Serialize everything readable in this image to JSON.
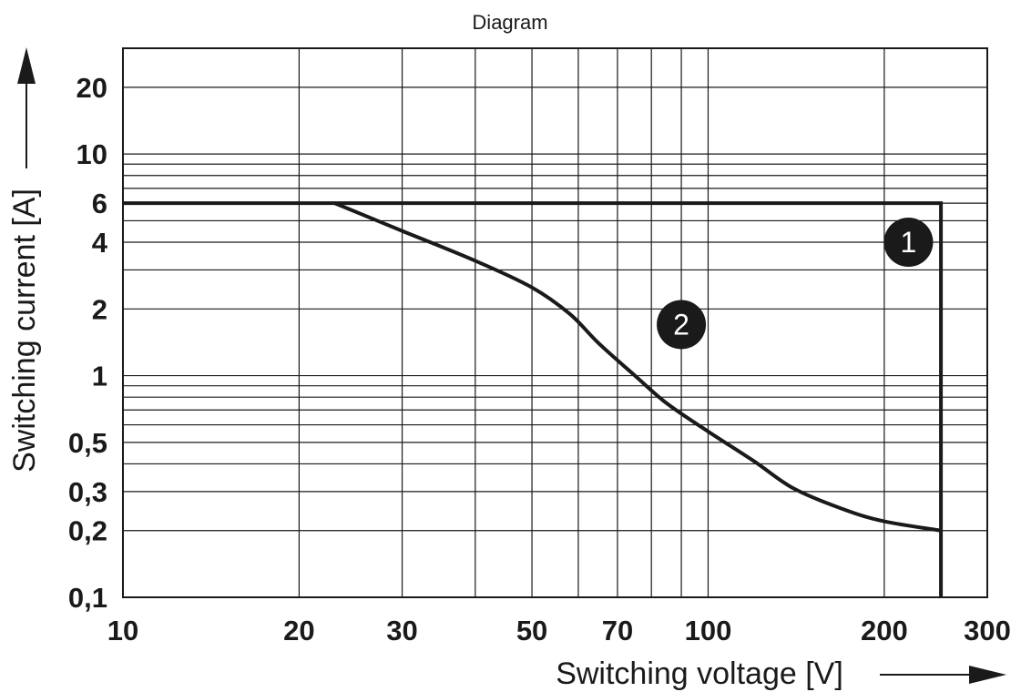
{
  "chart_data": {
    "type": "line",
    "title": "Diagram",
    "xlabel": "Switching voltage [V]",
    "ylabel": "Switching current [A]",
    "x_scale": "log",
    "y_scale": "log",
    "xlim": [
      10,
      300
    ],
    "ylim": [
      0.1,
      30
    ],
    "grid": true,
    "x_ticks": [
      10,
      20,
      30,
      50,
      70,
      100,
      200,
      300
    ],
    "x_tick_labels": [
      "10",
      "20",
      "30",
      "50",
      "70",
      "100",
      "200",
      "300"
    ],
    "y_ticks": [
      0.1,
      0.2,
      0.3,
      0.5,
      1,
      2,
      4,
      6,
      10,
      20
    ],
    "y_tick_labels": [
      "0,1",
      "0,2",
      "0,3",
      "0,5",
      "1",
      "2",
      "4",
      "6",
      "10",
      "20"
    ],
    "x_grid": [
      10,
      20,
      30,
      40,
      50,
      60,
      70,
      80,
      90,
      100,
      200,
      300
    ],
    "y_grid": [
      0.1,
      0.2,
      0.3,
      0.4,
      0.5,
      0.6,
      0.7,
      0.8,
      0.9,
      1,
      2,
      3,
      4,
      5,
      6,
      7,
      8,
      9,
      10,
      20,
      30
    ],
    "series": [
      {
        "marker_label": "1",
        "marker_at": [
          220,
          4
        ],
        "x": [
          10,
          250,
          250
        ],
        "y": [
          6,
          6,
          0.1
        ]
      },
      {
        "marker_label": "2",
        "marker_at": [
          90,
          1.7
        ],
        "x": [
          23,
          30,
          40,
          50,
          58,
          65,
          75,
          85,
          100,
          120,
          140,
          170,
          200,
          250
        ],
        "y": [
          6,
          4.5,
          3.3,
          2.5,
          1.9,
          1.4,
          1.0,
          0.75,
          0.56,
          0.41,
          0.31,
          0.25,
          0.22,
          0.2
        ]
      }
    ]
  }
}
